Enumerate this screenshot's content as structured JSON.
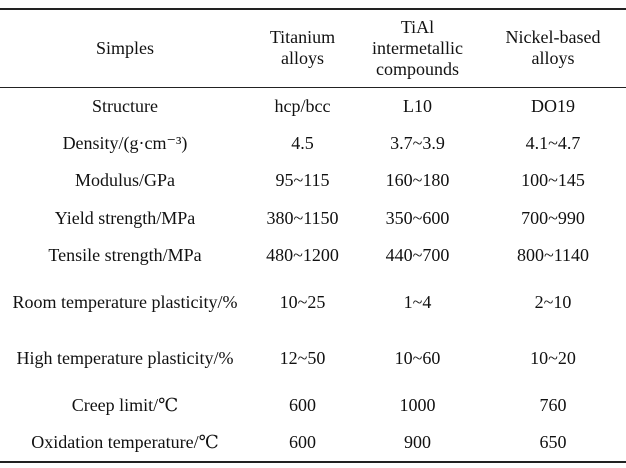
{
  "table": {
    "header": [
      "Simples",
      "Titanium alloys",
      "TiAl intermetallic compounds",
      "Nickel-based alloys"
    ],
    "rows": [
      [
        "Structure",
        "hcp/bcc",
        "L10",
        "DO19"
      ],
      [
        "Density/(g·cm⁻³)",
        "4.5",
        "3.7~3.9",
        "4.1~4.7"
      ],
      [
        "Modulus/GPa",
        "95~115",
        "160~180",
        "100~145"
      ],
      [
        "Yield strength/MPa",
        "380~1150",
        "350~600",
        "700~990"
      ],
      [
        "Tensile strength/MPa",
        "480~1200",
        "440~700",
        "800~1140"
      ],
      [
        "Room temperature plasticity/%",
        "10~25",
        "1~4",
        "2~10"
      ],
      [
        "High temperature plasticity/%",
        "12~50",
        "10~60",
        "10~20"
      ],
      [
        "Creep limit/℃",
        "600",
        "1000",
        "760"
      ],
      [
        "Oxidation temperature/℃",
        "600",
        "900",
        "650"
      ]
    ]
  }
}
